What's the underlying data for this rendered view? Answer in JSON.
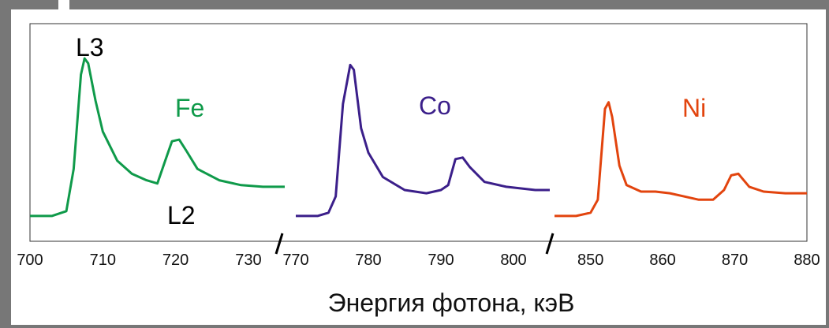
{
  "chart_data": {
    "type": "line",
    "title": "",
    "xlabel": "Энергия фотона, кэВ",
    "ylabel": "",
    "grid": false,
    "legend": "none",
    "axis_break_marker": "/",
    "panels": [
      {
        "xlim": [
          700,
          735
        ],
        "ticks": [
          700,
          710,
          720,
          730
        ],
        "tick_labels": [
          "700",
          "710",
          "720",
          "730"
        ],
        "series": [
          {
            "name": "Fe",
            "color": "#0f9a4a",
            "x": [
              700,
              703,
              705,
              706,
              707,
              707.5,
              708,
              709,
              710,
              712,
              714,
              716,
              717.5,
              718.5,
              719.5,
              720.5,
              721.5,
              723,
              726,
              729,
              732,
              735
            ],
            "y": [
              0.01,
              0.01,
              0.04,
              0.3,
              0.88,
              0.98,
              0.95,
              0.72,
              0.53,
              0.35,
              0.27,
              0.23,
              0.21,
              0.34,
              0.47,
              0.48,
              0.41,
              0.3,
              0.23,
              0.2,
              0.19,
              0.19
            ]
          }
        ]
      },
      {
        "xlim": [
          770,
          805
        ],
        "ticks": [
          770,
          780,
          790,
          800
        ],
        "tick_labels": [
          "770",
          "780",
          "790",
          "800"
        ],
        "series": [
          {
            "name": "Co",
            "color": "#3b1f8a",
            "x": [
              770,
              773,
              774.5,
              775.5,
              776.5,
              777.5,
              778,
              779,
              780,
              782,
              785,
              788,
              790,
              791,
              792,
              793,
              794,
              796,
              799,
              803,
              805
            ],
            "y": [
              0.01,
              0.01,
              0.03,
              0.13,
              0.7,
              0.94,
              0.91,
              0.55,
              0.4,
              0.25,
              0.17,
              0.15,
              0.17,
              0.2,
              0.36,
              0.37,
              0.31,
              0.22,
              0.19,
              0.17,
              0.17
            ]
          }
        ]
      },
      {
        "xlim": [
          845,
          880
        ],
        "ticks": [
          850,
          860,
          870,
          880
        ],
        "tick_labels": [
          "850",
          "860",
          "870",
          "880"
        ],
        "series": [
          {
            "name": "Ni",
            "color": "#e2440e",
            "x": [
              845,
              848,
              850,
              851,
              852,
              852.5,
              853,
              854,
              855,
              857,
              859,
              861,
              863,
              865,
              867,
              868.5,
              869.5,
              870.5,
              872,
              874,
              877,
              880
            ],
            "y": [
              0.01,
              0.01,
              0.03,
              0.11,
              0.67,
              0.71,
              0.62,
              0.32,
              0.2,
              0.16,
              0.16,
              0.15,
              0.13,
              0.11,
              0.11,
              0.17,
              0.26,
              0.27,
              0.19,
              0.16,
              0.15,
              0.15
            ]
          }
        ]
      }
    ],
    "annotations": {
      "peak_upper": "L3",
      "peak_lower": "L2"
    }
  }
}
